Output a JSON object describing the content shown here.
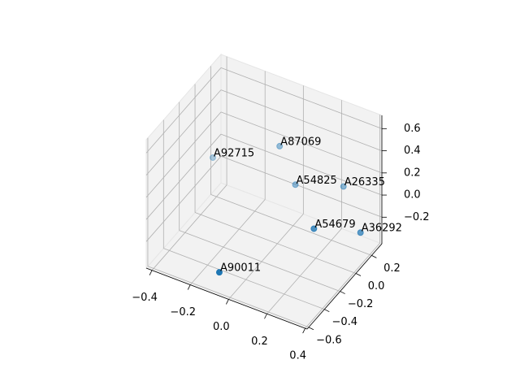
{
  "chart_data": {
    "type": "scatter3d",
    "x": [
      0.02,
      -0.37,
      0.02,
      0.23,
      0.24,
      0.36,
      -0.11
    ],
    "y": [
      -0.02,
      0.08,
      0.18,
      0.28,
      -0.12,
      0.18,
      -0.47
    ],
    "z": [
      0.47,
      0.03,
      -0.04,
      0.0,
      -0.05,
      -0.25,
      -0.39
    ],
    "point_labels": [
      "A87069",
      "A92715",
      "A54825",
      "A26335",
      "A54679",
      "A36292",
      "A90011"
    ],
    "color": "#1f77b4",
    "depthshade": true,
    "xlim": [
      -0.43,
      0.41
    ],
    "ylim": [
      -0.62,
      0.33
    ],
    "zlim": [
      -0.44,
      0.72
    ],
    "xticks": [
      {
        "value": -0.4,
        "label": "−0.4"
      },
      {
        "value": -0.2,
        "label": "−0.2"
      },
      {
        "value": 0,
        "label": "0.0"
      },
      {
        "value": 0.2,
        "label": "0.2"
      },
      {
        "value": 0.4,
        "label": "0.4"
      }
    ],
    "yticks": [
      {
        "value": -0.6,
        "label": "−0.6"
      },
      {
        "value": -0.4,
        "label": "−0.4"
      },
      {
        "value": -0.2,
        "label": "−0.2"
      },
      {
        "value": 0,
        "label": "0.0"
      },
      {
        "value": 0.2,
        "label": "0.2"
      }
    ],
    "zticks": [
      {
        "value": -0.2,
        "label": "−0.2"
      },
      {
        "value": 0,
        "label": "0.0"
      },
      {
        "value": 0.2,
        "label": "0.2"
      },
      {
        "value": 0.4,
        "label": "0.4"
      },
      {
        "value": 0.6,
        "label": "0.6"
      }
    ],
    "grid": true
  }
}
